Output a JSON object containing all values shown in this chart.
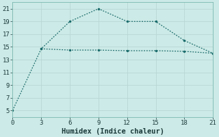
{
  "line1_x": [
    0,
    3,
    6,
    9,
    12,
    15,
    18,
    21
  ],
  "line1_y": [
    5,
    14.7,
    19,
    21,
    19,
    19,
    16,
    14
  ],
  "line2_x": [
    3,
    6,
    9,
    12,
    15,
    18,
    21
  ],
  "line2_y": [
    14.7,
    14.5,
    14.5,
    14.4,
    14.4,
    14.3,
    14
  ],
  "line_color": "#1a6b6b",
  "bg_color": "#cceae7",
  "grid_color": "#b8d8d4",
  "xlabel": "Humidex (Indice chaleur)",
  "xlim": [
    0,
    21
  ],
  "ylim": [
    4,
    22
  ],
  "xticks": [
    0,
    3,
    6,
    9,
    12,
    15,
    18,
    21
  ],
  "yticks": [
    5,
    7,
    9,
    11,
    13,
    15,
    17,
    19,
    21
  ]
}
